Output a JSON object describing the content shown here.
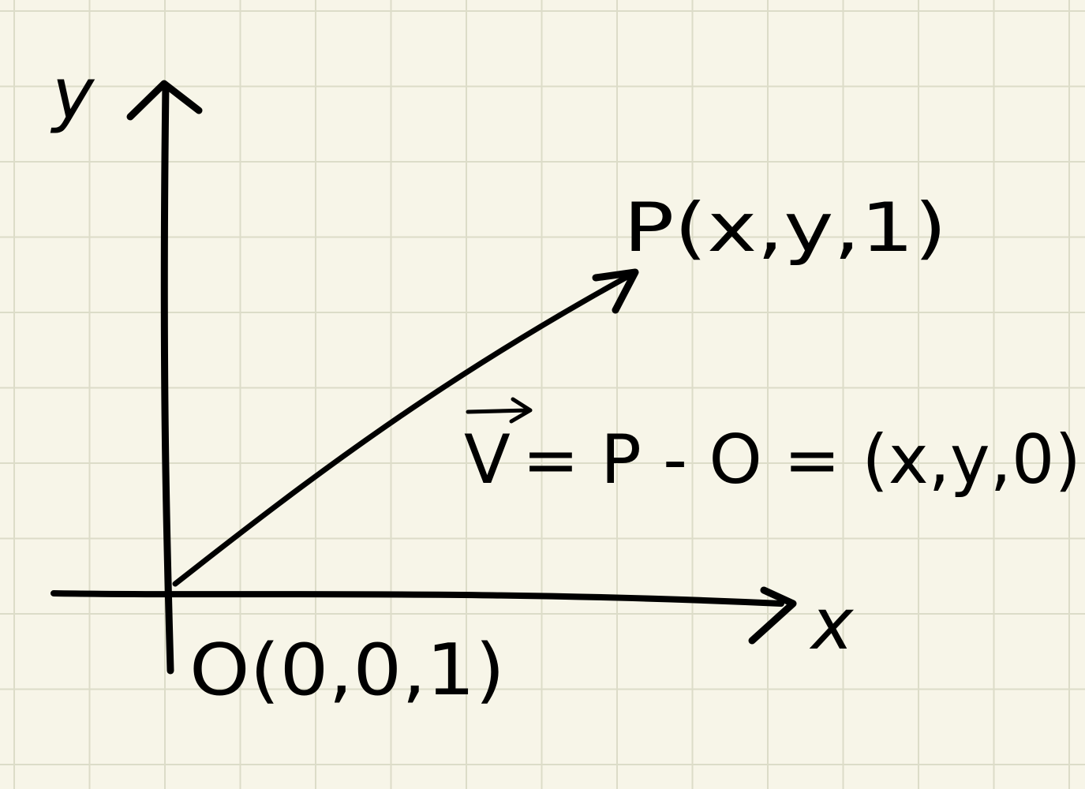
{
  "labels": {
    "y_axis": "y",
    "x_axis": "x",
    "point_p": "P(x,y,1)",
    "origin": "O(0,0,1)",
    "vector_symbol": "V",
    "vector_equation": "= P - O = (x,y,0)"
  },
  "colors": {
    "paper": "#f7f5e8",
    "grid": "#dcdcc8",
    "ink": "#000000"
  }
}
